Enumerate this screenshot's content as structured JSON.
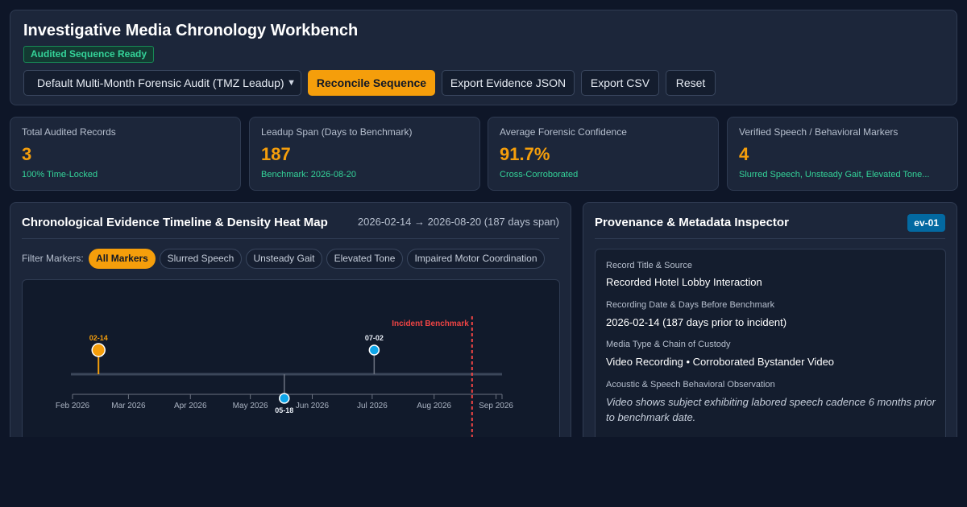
{
  "header": {
    "title": "Investigative Media Chronology Workbench",
    "status_badge": "Audited Sequence Ready",
    "preset_select": "Default Multi-Month Forensic Audit (TMZ Leadup)",
    "buttons": {
      "reconcile": "Reconcile Sequence",
      "export_json": "Export Evidence JSON",
      "export_csv": "Export CSV",
      "reset": "Reset"
    }
  },
  "stats": [
    {
      "label": "Total Audited Records",
      "value": "3",
      "sub": "100% Time-Locked"
    },
    {
      "label": "Leadup Span (Days to Benchmark)",
      "value": "187",
      "sub": "Benchmark: 2026-08-20"
    },
    {
      "label": "Average Forensic Confidence",
      "value": "91.7%",
      "sub": "Cross-Corroborated"
    },
    {
      "label": "Verified Speech / Behavioral Markers",
      "value": "4",
      "sub": "Slurred Speech, Unsteady Gait, Elevated Tone..."
    }
  ],
  "timeline": {
    "title": "Chronological Evidence Timeline & Density Heat Map",
    "range_start": "2026-02-14",
    "range_arrow": "→",
    "range_end": "2026-08-20 (187 days span)",
    "filter_label": "Filter Markers:",
    "filters": [
      "All Markers",
      "Slurred Speech",
      "Unsteady Gait",
      "Elevated Tone",
      "Impaired Motor Coordination"
    ],
    "active_filter": "All Markers"
  },
  "chart_data": {
    "type": "scatter",
    "x_axis": {
      "ticks": [
        "Feb 2026",
        "Mar 2026",
        "Apr 2026",
        "May 2026",
        "Jun 2026",
        "Jul 2026",
        "Aug 2026",
        "Sep 2026"
      ],
      "range": [
        "2026-02-01",
        "2026-09-04"
      ]
    },
    "events": [
      {
        "date": "2026-02-14",
        "label": "02-14",
        "side": "above",
        "selected": true
      },
      {
        "date": "2026-05-18",
        "label": "05-18",
        "side": "below",
        "selected": false
      },
      {
        "date": "2026-07-02",
        "label": "07-02",
        "side": "above",
        "selected": false
      }
    ],
    "benchmark": {
      "date": "2026-08-20",
      "label": "Incident Benchmark"
    },
    "colors": {
      "selected": "#f59e0b",
      "normal": "#0ea5e9",
      "benchmark": "#ef4444",
      "axis": "#6b7280"
    }
  },
  "inspector": {
    "title": "Provenance & Metadata Inspector",
    "record_id": "ev-01",
    "fields": {
      "title_label": "Record Title & Source",
      "title_value": "Recorded Hotel Lobby Interaction",
      "date_label": "Recording Date & Days Before Benchmark",
      "date_value": "2026-02-14 (187 days prior to incident)",
      "media_label": "Media Type & Chain of Custody",
      "media_value": "Video Recording • Corroborated Bystander Video",
      "observation_label": "Acoustic & Speech Behavioral Observation",
      "observation_value": "Video shows subject exhibiting labored speech cadence 6 months prior to benchmark date."
    }
  }
}
